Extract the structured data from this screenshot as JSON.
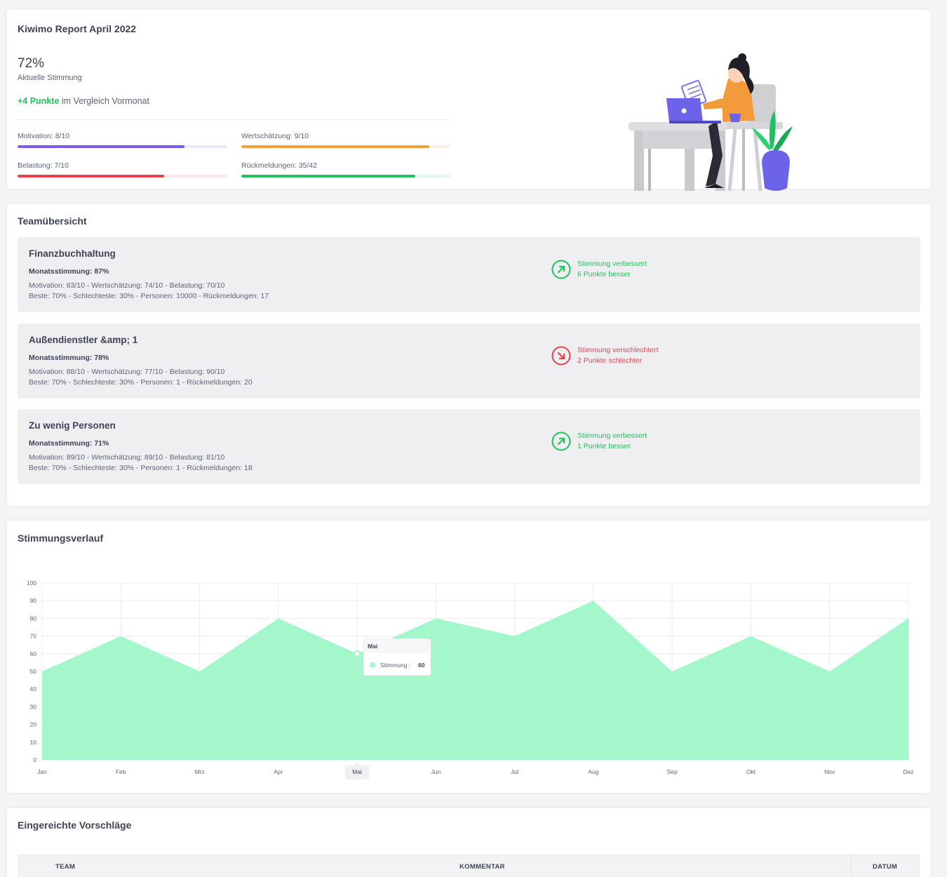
{
  "summary": {
    "title": "Kiwimo Report April 2022",
    "current_percent": "72%",
    "current_caption": "Aktuelle Stimmung",
    "delta_strong": "+4 Punkte",
    "delta_rest": " im Vergleich Vormonat",
    "metrics": [
      {
        "label": "Motivation: 8/10",
        "value": 0.8,
        "color": "#7b5cf0",
        "track": "#ece9fb"
      },
      {
        "label": "Wertschätzung: 9/10",
        "value": 0.9,
        "color": "#f6a03a",
        "track": "#fdf0e1"
      },
      {
        "label": "Belastung: 7/10",
        "value": 0.7,
        "color": "#e5444f",
        "track": "#fce7e8"
      },
      {
        "label": "Rückmeldungen: 35/42",
        "value": 0.833,
        "color": "#22c063",
        "track": "#e4f7ec"
      }
    ]
  },
  "teams": {
    "title": "Teamübersicht",
    "items": [
      {
        "name": "Finanzbuchhaltung",
        "month": "Monatsstimmung: 87%",
        "line1": "Motivation: 83/10 - Wertschätzung: 74/10 - Belastung: 70/10",
        "line2": "Beste: 70% - Schlechteste: 30% - Personen: 10000 - Rückmeldungen: 17",
        "trend_title": "Stimmung verbessert",
        "trend_sub": "6 Punkte besser",
        "trend_dir": "up",
        "trend_color": "#1ec45a"
      },
      {
        "name": "Außendienstler &amp; 1",
        "month": "Monatsstimmung: 78%",
        "line1": "Motivation: 88/10 - Wertschätzung: 77/10 - Belastung: 90/10",
        "line2": "Beste: 70% - Schlechteste: 30% - Personen: 1 - Rückmeldungen: 20",
        "trend_title": "Stimmung verschlechtert",
        "trend_sub": "2 Punkte schlechter",
        "trend_dir": "down",
        "trend_color": "#e5444f"
      },
      {
        "name": "Zu wenig Personen",
        "month": "Monatsstimmung: 71%",
        "line1": "Motivation: 89/10 - Wertschätzung: 89/10 - Belastung: 81/10",
        "line2": "Beste: 70% - Schlechteste: 30% - Personen: 1 - Rückmeldungen: 18",
        "trend_title": "Stimmung verbessert",
        "trend_sub": "1 Punkte besser",
        "trend_dir": "up",
        "trend_color": "#1ec45a"
      }
    ]
  },
  "chart_section": {
    "title": "Stimmungsverlauf",
    "tooltip": {
      "title": "Mai",
      "series_label": "Stimmung :",
      "value": "60"
    }
  },
  "chart_data": {
    "type": "area",
    "categories": [
      "Jan",
      "Feb",
      "Mrz",
      "Apr",
      "Mai",
      "Jun",
      "Jul",
      "Aug",
      "Sep",
      "Okt",
      "Nov",
      "Dez"
    ],
    "series": [
      {
        "name": "Stimmung",
        "values": [
          50,
          70,
          50,
          80,
          60,
          80,
          70,
          90,
          50,
          70,
          50,
          80
        ],
        "color": "#a3f7cb"
      }
    ],
    "ylim": [
      0,
      100
    ],
    "yticks": [
      "0",
      "10",
      "20",
      "30",
      "40",
      "50",
      "60",
      "70",
      "80",
      "90",
      "100"
    ],
    "highlighted_category": "Mai",
    "grid": true
  },
  "suggestions": {
    "title": "Eingereichte Vorschläge",
    "columns": [
      "TEAM",
      "KOMMENTAR",
      "DATUM"
    ]
  }
}
